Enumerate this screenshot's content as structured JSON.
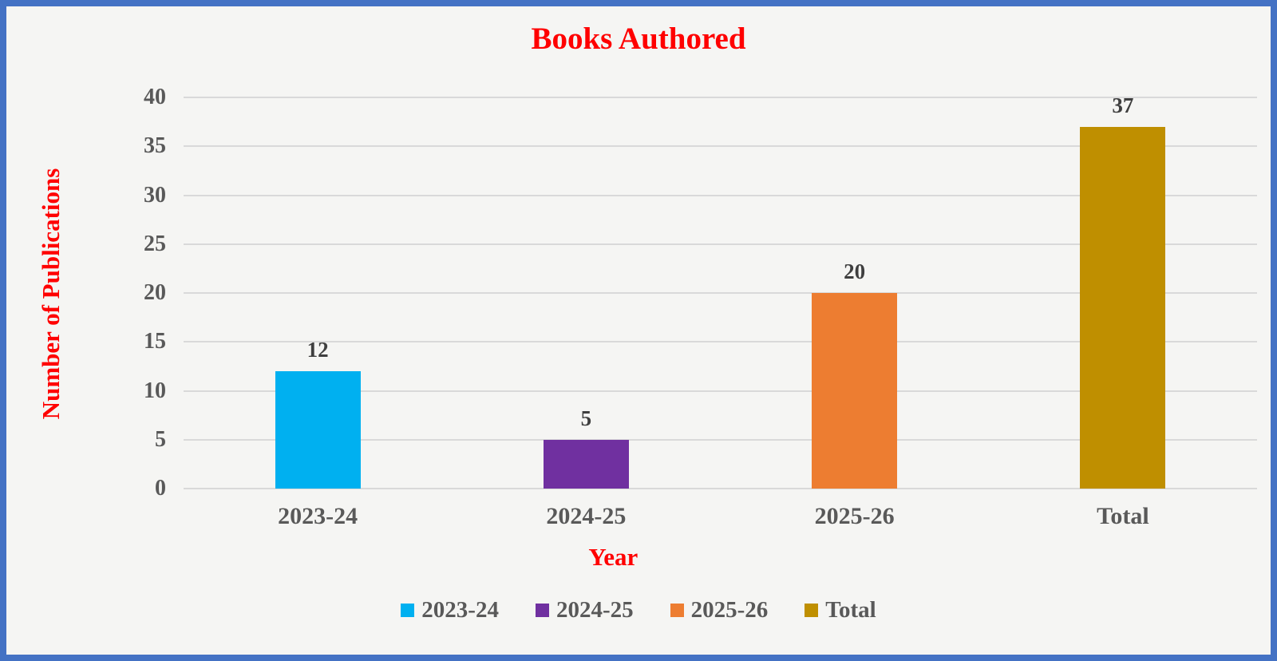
{
  "chart_data": {
    "type": "bar",
    "title": "Books Authored",
    "xlabel": "Year",
    "ylabel": "Number of Publications",
    "categories": [
      "2023-24",
      "2024-25",
      "2025-26",
      "Total"
    ],
    "values": [
      12,
      5,
      20,
      37
    ],
    "data_labels": [
      "12",
      "5",
      "20",
      "37"
    ],
    "bar_colors": [
      "#00B0F0",
      "#7030A0",
      "#ED7D31",
      "#BF8F00"
    ],
    "ylim": [
      0,
      40
    ],
    "ytick_step": 5,
    "ytick_labels": [
      "0",
      "5",
      "10",
      "15",
      "20",
      "25",
      "30",
      "35",
      "40"
    ],
    "grid": true,
    "legend_position": "bottom",
    "legend": [
      {
        "label": "2023-24",
        "color": "#00B0F0"
      },
      {
        "label": "2024-25",
        "color": "#7030A0"
      },
      {
        "label": "2025-26",
        "color": "#ED7D31"
      },
      {
        "label": "Total",
        "color": "#BF8F00"
      }
    ]
  },
  "colors": {
    "frame_border": "#4472C4",
    "background": "#F5F5F3",
    "title_text": "#FF0000",
    "axis_title_text": "#FF0000",
    "tick_text": "#595959",
    "data_label_text": "#3F3F3F",
    "gridline": "#D9D9D9"
  }
}
